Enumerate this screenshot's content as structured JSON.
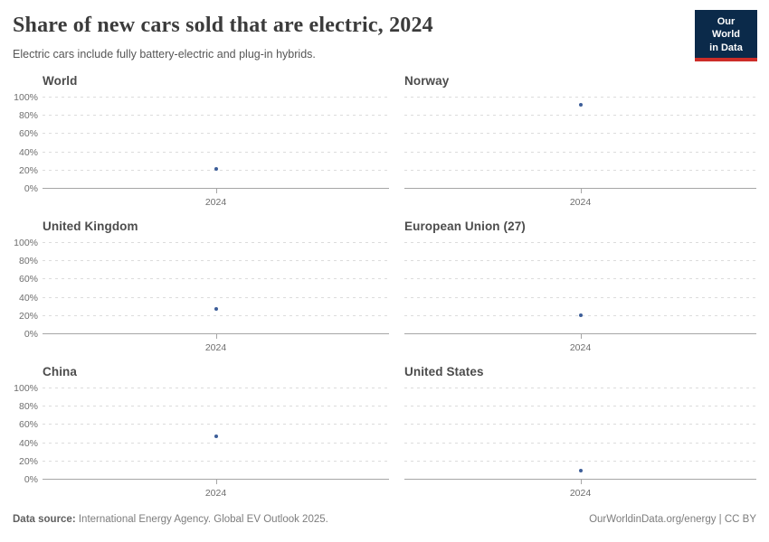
{
  "header": {
    "title": "Share of new cars sold that are electric, 2024",
    "subtitle": "Electric cars include fully battery-electric and plug-in hybrids.",
    "logo": {
      "line1": "Our World",
      "line2": "in Data",
      "bg_color": "#0b2a4a",
      "accent_color": "#cc2d28"
    }
  },
  "chart_data": {
    "type": "scatter",
    "title": "Share of new cars sold that are electric, 2024",
    "x": [
      2024
    ],
    "xtick_label": "2024",
    "ylim": [
      0,
      100
    ],
    "yticks": [
      {
        "label": "0%",
        "v": 0
      },
      {
        "label": "20%",
        "v": 20
      },
      {
        "label": "40%",
        "v": 40
      },
      {
        "label": "60%",
        "v": 60
      },
      {
        "label": "80%",
        "v": 80
      },
      {
        "label": "100%",
        "v": 100
      }
    ],
    "grid": true,
    "point_color": "#3d5e99",
    "panels": [
      {
        "title": "World",
        "year": 2024,
        "value": 22
      },
      {
        "title": "Norway",
        "year": 2024,
        "value": 92
      },
      {
        "title": "United Kingdom",
        "year": 2024,
        "value": 28
      },
      {
        "title": "European Union (27)",
        "year": 2024,
        "value": 21
      },
      {
        "title": "China",
        "year": 2024,
        "value": 48
      },
      {
        "title": "United States",
        "year": 2024,
        "value": 10
      }
    ]
  },
  "footer": {
    "source_label": "Data source:",
    "source_text": " International Energy Agency. Global EV Outlook 2025.",
    "right_text": "OurWorldinData.org/energy | CC BY"
  }
}
